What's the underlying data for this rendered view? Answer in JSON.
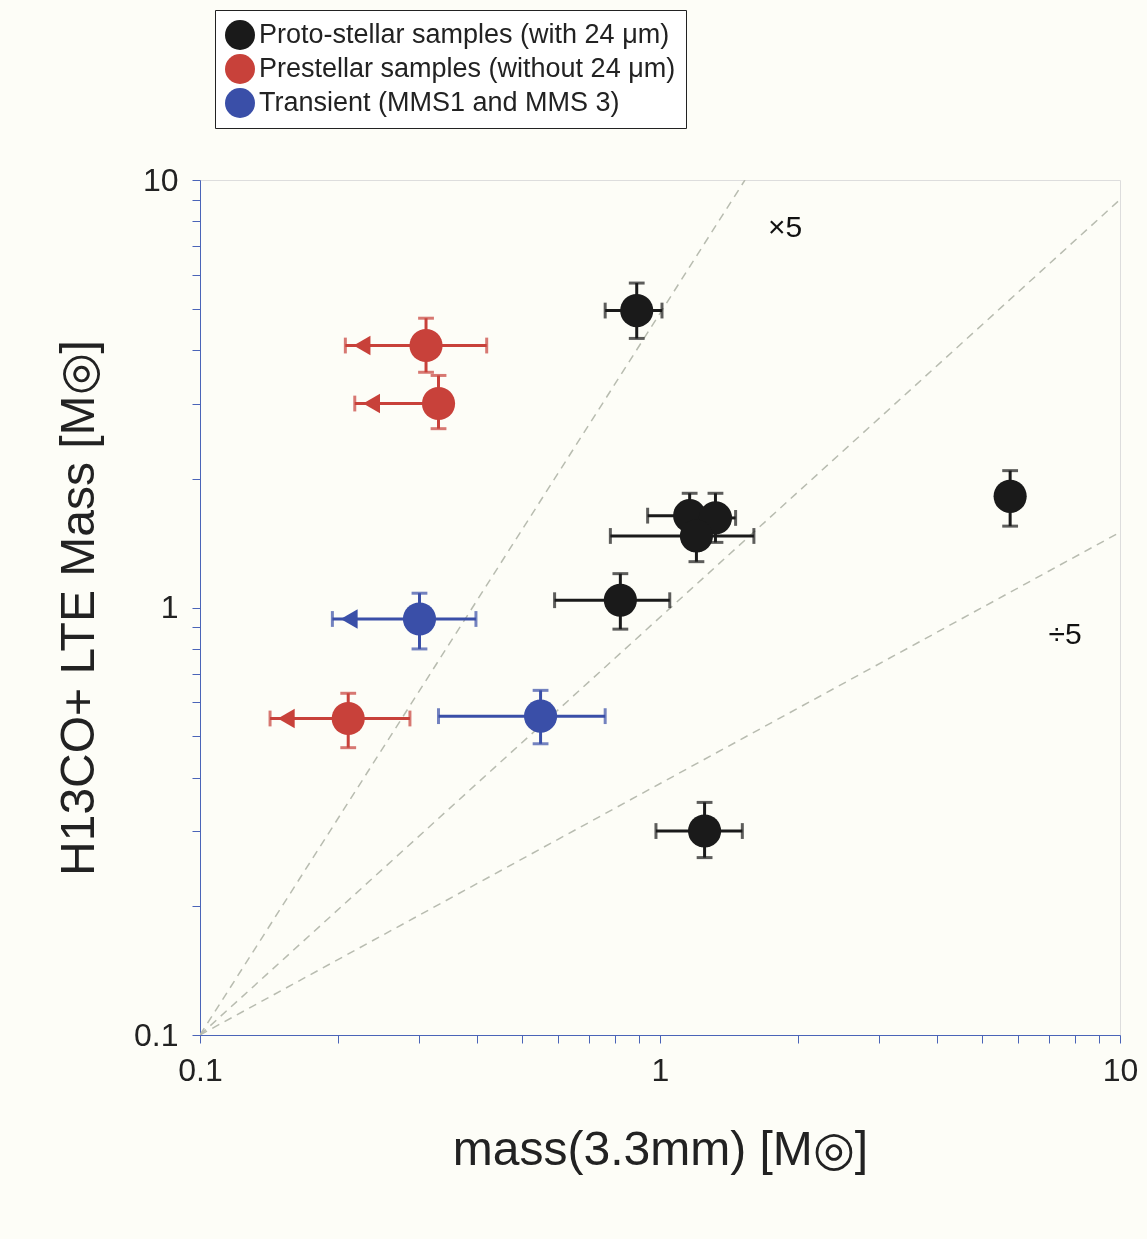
{
  "chart_data": {
    "type": "scatter",
    "xlabel": "mass(3.3mm) [M◎]",
    "ylabel": "H13CO+ LTE Mass [M◎]",
    "log": "xy",
    "legend": "top",
    "marker": "circle",
    "grid": false,
    "xlim": [
      0.1,
      10
    ],
    "ylim": [
      0.1,
      10
    ],
    "xticks": [
      0.1,
      {
        "value": 0.2,
        "label": null
      },
      {
        "value": 0.3,
        "label": null
      },
      {
        "value": 0.4,
        "label": null
      },
      {
        "value": 0.5,
        "label": null
      },
      {
        "value": 0.6,
        "label": null
      },
      {
        "value": 0.7,
        "label": null
      },
      {
        "value": 0.8,
        "label": null
      },
      {
        "value": 0.9,
        "label": null
      },
      1,
      {
        "value": 2,
        "label": null
      },
      {
        "value": 3,
        "label": null
      },
      {
        "value": 4,
        "label": null
      },
      {
        "value": 5,
        "label": null
      },
      {
        "value": 6,
        "label": null
      },
      {
        "value": 7,
        "label": null
      },
      {
        "value": 8,
        "label": null
      },
      {
        "value": 9,
        "label": null
      },
      10
    ],
    "yticks": [
      0.1,
      {
        "value": 0.2,
        "label": null
      },
      {
        "value": 0.3,
        "label": null
      },
      {
        "value": 0.4,
        "label": null
      },
      {
        "value": 0.5,
        "label": null
      },
      {
        "value": 0.6,
        "label": null
      },
      {
        "value": 0.7,
        "label": null
      },
      {
        "value": 0.8,
        "label": null
      },
      {
        "value": 0.9,
        "label": null
      },
      1,
      {
        "value": 2,
        "label": null
      },
      {
        "value": 3,
        "label": null
      },
      {
        "value": 4,
        "label": null
      },
      {
        "value": 5,
        "label": null
      },
      {
        "value": 6,
        "label": null
      },
      {
        "value": 7,
        "label": null
      },
      {
        "value": 8,
        "label": null
      },
      {
        "value": 9,
        "label": null
      },
      10
    ],
    "annotations": [
      "×5",
      "÷5"
    ],
    "series": [
      {
        "type": "line",
        "line_style": "dashed",
        "marker": "none",
        "color": "#b8bcb0",
        "x": [
          0.1,
          1.53
        ],
        "values": [
          0.1,
          10
        ]
      },
      {
        "type": "line",
        "line_style": "dashed",
        "marker": "none",
        "color": "#b8bcb0",
        "x": [
          0.1,
          10
        ],
        "values": [
          0.1,
          9
        ]
      },
      {
        "type": "line",
        "line_style": "dashed",
        "marker": "none",
        "color": "#b8bcb0",
        "x": [
          0.1,
          10
        ],
        "values": [
          0.1,
          1.5
        ]
      },
      {
        "name": "Proto-stellar samples (with 24 μm)",
        "color": "#1a1a1a",
        "x": [
          0.89,
          5.77,
          1.16,
          1.32,
          1.2,
          0.82,
          1.25
        ],
        "values": [
          4.95,
          1.82,
          1.64,
          1.62,
          1.47,
          1.04,
          0.3
        ],
        "xerrors": [
          [
            0.76,
            1.01
          ],
          null,
          [
            0.94,
            1.16
          ],
          [
            1.32,
            1.46
          ],
          [
            0.78,
            1.6
          ],
          [
            0.59,
            1.05
          ],
          [
            0.98,
            1.51
          ]
        ],
        "errors": [
          [
            4.26,
            5.74
          ],
          [
            1.55,
            2.09
          ],
          [
            1.64,
            1.85
          ],
          [
            1.42,
            1.85
          ],
          [
            1.28,
            1.47
          ],
          [
            0.89,
            1.2
          ],
          [
            0.26,
            0.35
          ]
        ]
      },
      {
        "name": "Prestellar samples (without 24 μm)",
        "color": "#c8413a",
        "x": [
          0.31,
          0.33,
          0.21
        ],
        "values": [
          4.1,
          3.0,
          0.55
        ],
        "xerrors": [
          [
            0.207,
            0.42
          ],
          [
            0.217,
            0.33
          ],
          [
            0.142,
            0.286
          ]
        ],
        "errors": [
          [
            3.55,
            4.75
          ],
          [
            2.62,
            3.49
          ],
          [
            0.47,
            0.63
          ]
        ]
      },
      {
        "name": "Transient (MMS1 and MMS 3)",
        "color": "#3a4fa8",
        "x": [
          0.3,
          0.55
        ],
        "values": [
          0.94,
          0.557
        ],
        "xerrors": [
          [
            0.194,
            0.398
          ],
          [
            0.33,
            0.76
          ]
        ],
        "errors": [
          [
            0.8,
            1.08
          ],
          [
            0.48,
            0.64
          ]
        ]
      },
      {
        "type": "scatter",
        "marker": "triangle",
        "color": "#c8413a",
        "x": [
          0.225,
          0.236,
          0.154
        ],
        "values": [
          4.1,
          3.0,
          0.55
        ]
      },
      {
        "type": "scatter",
        "marker": "triangle",
        "color": "#3a4fa8",
        "x": [
          0.211
        ],
        "values": [
          0.94
        ]
      }
    ]
  }
}
